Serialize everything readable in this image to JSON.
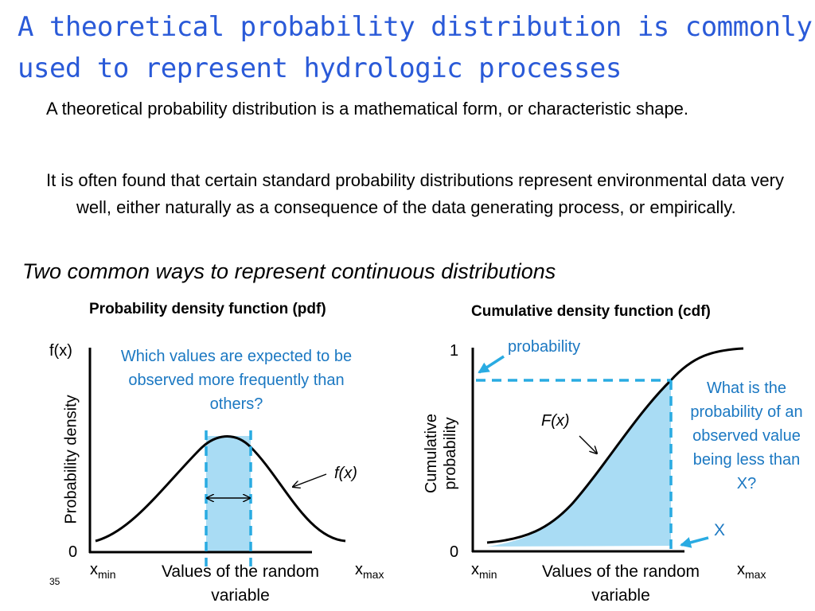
{
  "title": "A theoretical probability distribution is commonly used to represent hydrologic processes",
  "bullets": [
    "A theoretical probability distribution is a mathematical form, or characteristic shape.",
    "It is often found that certain standard probability distributions represent environmental data very well, either naturally as a consequence of the data generating process, or empirically."
  ],
  "subheading": "Two common ways to represent continuous distributions",
  "pdf_panel": {
    "title": "Probability density function (pdf)",
    "y_top_label": "f(x)",
    "y_zero": "0",
    "y_axis_label": "Probability density",
    "question": "Which values are expected to be observed more frequently than others?",
    "curve_label": "f(x)",
    "x_min": "x",
    "x_min_sub": "min",
    "x_max": "x",
    "x_max_sub": "max",
    "x_axis_label": "Values of the random variable"
  },
  "cdf_panel": {
    "title": "Cumulative density function (cdf)",
    "y_top_label": "1",
    "y_zero": "0",
    "y_axis_label_line1": "Cumulative",
    "y_axis_label_line2": "probability",
    "probability_label": "probability",
    "question": "What is the probability of an observed value being less than X?",
    "curve_label": "F(x)",
    "x_marker_label": "X",
    "x_min": "x",
    "x_min_sub": "min",
    "x_max": "x",
    "x_max_sub": "max",
    "x_axis_label": "Values of the random variable"
  },
  "slide_number": "35",
  "colors": {
    "title": "#2a5ad8",
    "annotation": "#1b78c2",
    "shade": "#a9dcf4",
    "dashed": "#29abe2"
  }
}
